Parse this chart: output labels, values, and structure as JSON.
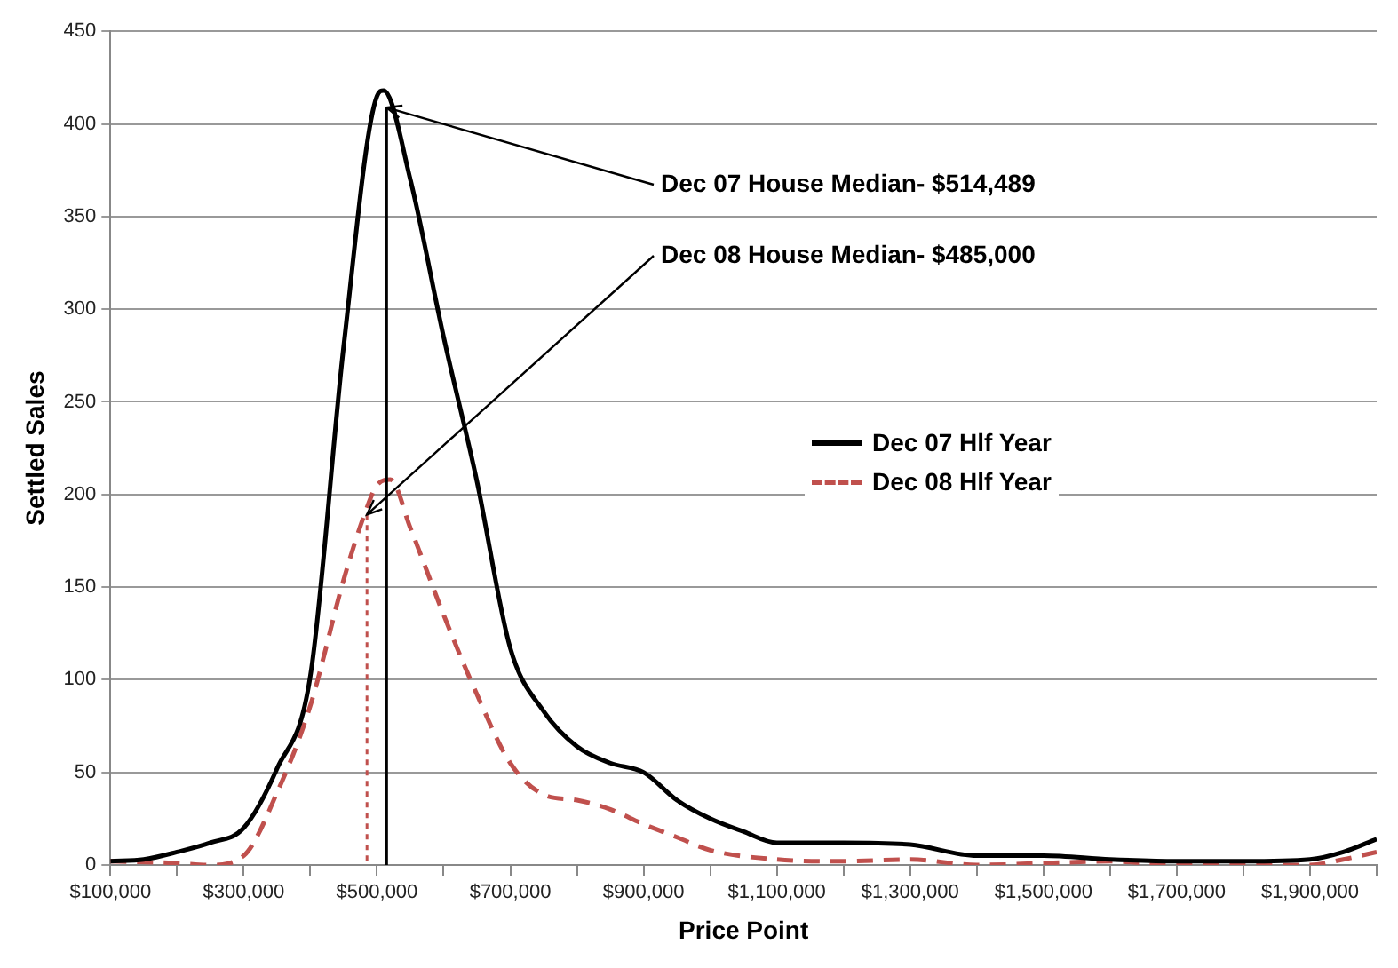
{
  "chart_data": {
    "type": "line",
    "xlabel": "Price Point",
    "ylabel": "Settled Sales",
    "xlim": [
      100000,
      2000000
    ],
    "xticks": [
      {
        "value": 100000,
        "label": "$100,000"
      },
      {
        "value": 200000,
        "label": null
      },
      {
        "value": 300000,
        "label": "$300,000"
      },
      {
        "value": 400000,
        "label": null
      },
      {
        "value": 500000,
        "label": "$500,000"
      },
      {
        "value": 600000,
        "label": null
      },
      {
        "value": 700000,
        "label": "$700,000"
      },
      {
        "value": 800000,
        "label": null
      },
      {
        "value": 900000,
        "label": "$900,000"
      },
      {
        "value": 1000000,
        "label": null
      },
      {
        "value": 1100000,
        "label": "$1,100,000"
      },
      {
        "value": 1200000,
        "label": null
      },
      {
        "value": 1300000,
        "label": "$1,300,000"
      },
      {
        "value": 1400000,
        "label": null
      },
      {
        "value": 1500000,
        "label": "$1,500,000"
      },
      {
        "value": 1600000,
        "label": null
      },
      {
        "value": 1700000,
        "label": "$1,700,000"
      },
      {
        "value": 1800000,
        "label": null
      },
      {
        "value": 1900000,
        "label": "$1,900,000"
      },
      {
        "value": 2000000,
        "label": null
      }
    ],
    "ylim": [
      0,
      450
    ],
    "yticks": [
      0,
      50,
      100,
      150,
      200,
      250,
      300,
      350,
      400,
      450
    ],
    "grid": "y",
    "legend": "right",
    "marker": "none",
    "series": [
      {
        "name": "Dec 07 Hlf Year",
        "color": "#000000",
        "line_style": "solid",
        "x": [
          100000,
          150000,
          200000,
          250000,
          300000,
          350000,
          400000,
          450000,
          500000,
          510000,
          550000,
          600000,
          650000,
          700000,
          750000,
          800000,
          850000,
          900000,
          950000,
          1000000,
          1050000,
          1100000,
          1200000,
          1300000,
          1400000,
          1500000,
          1600000,
          1700000,
          1800000,
          1900000,
          1950000,
          2000000
        ],
        "values": [
          2,
          3,
          7,
          12,
          20,
          52,
          102,
          280,
          415,
          418,
          370,
          285,
          207,
          117,
          83,
          64,
          55,
          50,
          35,
          25,
          18,
          12,
          12,
          11,
          5,
          5,
          3,
          2,
          2,
          3,
          7,
          14
        ]
      },
      {
        "name": "Dec 08 Hlf Year",
        "color": "#c0504d",
        "line_style": "dashed",
        "x": [
          100000,
          200000,
          250000,
          300000,
          350000,
          400000,
          450000,
          485000,
          500000,
          520000,
          550000,
          600000,
          650000,
          700000,
          750000,
          800000,
          850000,
          900000,
          950000,
          1000000,
          1100000,
          1200000,
          1300000,
          1400000,
          1500000,
          1600000,
          1700000,
          1800000,
          1900000,
          1950000,
          2000000
        ],
        "values": [
          2,
          1,
          0,
          5,
          39,
          86,
          154,
          193,
          205,
          208,
          182,
          135,
          92,
          55,
          38,
          35,
          30,
          22,
          15,
          8,
          3,
          2,
          3,
          0,
          1,
          2,
          0,
          0,
          0,
          3,
          7
        ]
      }
    ],
    "ref_lines": [
      {
        "axis": "x",
        "value": 514489,
        "label": "Dec 07 House Median- $514,489",
        "color": "#000000",
        "line_style": "solid"
      },
      {
        "axis": "x",
        "value": 485000,
        "label": "Dec 08 House Median- $485,000",
        "color": "#c0504d",
        "line_style": "dotted"
      }
    ]
  }
}
